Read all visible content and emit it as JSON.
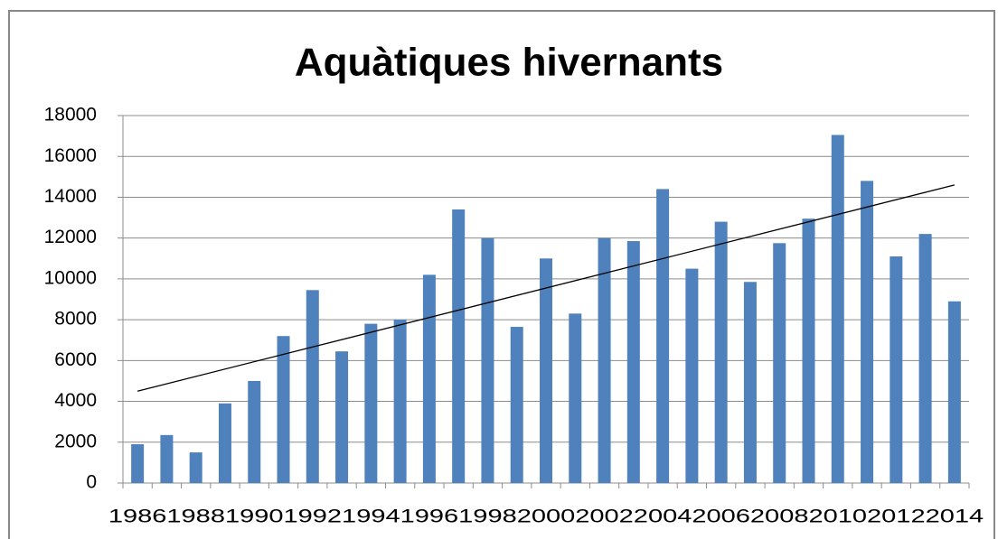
{
  "chart_data": {
    "type": "bar",
    "title": "Aquàtiques hivernants",
    "categories": [
      "1986",
      null,
      "1988",
      null,
      "1990",
      null,
      "1992",
      null,
      "1994",
      null,
      "1996",
      null,
      "1998",
      null,
      "2000",
      null,
      "2002",
      null,
      "2004",
      null,
      "2006",
      null,
      "2008",
      null,
      "2010",
      null,
      "2012",
      null,
      "2014"
    ],
    "values": [
      1900,
      2350,
      1500,
      3900,
      5000,
      7200,
      9450,
      6450,
      7800,
      8000,
      10200,
      13400,
      12000,
      7650,
      11000,
      8300,
      12000,
      11850,
      14400,
      10500,
      12800,
      9850,
      11750,
      12950,
      17050,
      14800,
      11100,
      12200,
      8900
    ],
    "color": "#4f81bd",
    "trendline": {
      "values": [
        4500,
        14600
      ],
      "color": "#000000"
    },
    "ylim": [
      0,
      18000
    ],
    "yticks": [
      0,
      2000,
      4000,
      6000,
      8000,
      10000,
      12000,
      14000,
      16000,
      18000
    ],
    "grid": true
  }
}
